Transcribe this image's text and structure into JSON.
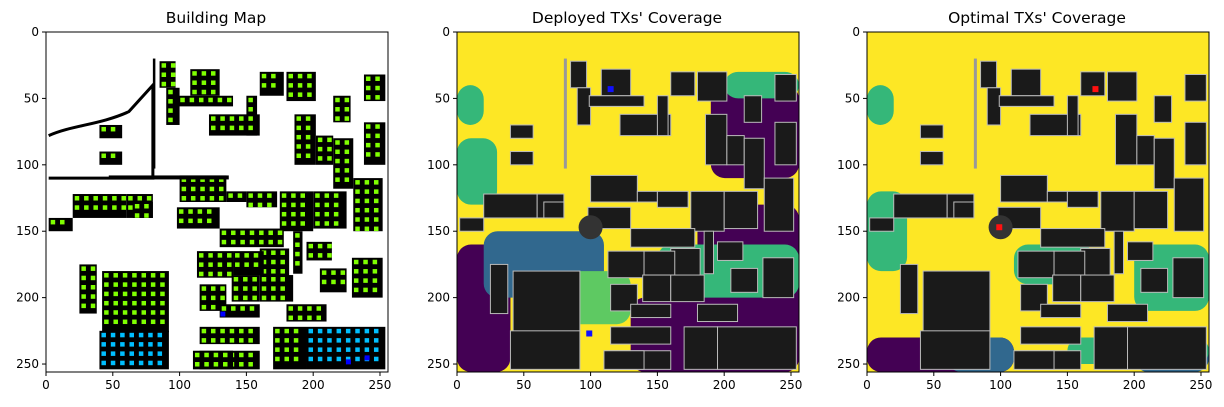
{
  "chart_data": [
    {
      "type": "heatmap",
      "title": "Building Map",
      "xlim": [
        0,
        256
      ],
      "ylim": [
        256,
        0
      ],
      "xticks": [
        0,
        50,
        100,
        150,
        200,
        250
      ],
      "yticks": [
        0,
        50,
        100,
        150,
        200,
        250
      ],
      "colors": {
        "background": "#ffffff",
        "building": "#000000",
        "marker": "#7fff00",
        "rx": "#00bfff",
        "tx": "#0000ff"
      }
    },
    {
      "type": "heatmap",
      "title": "Deployed TXs' Coverage",
      "xlim": [
        0,
        256
      ],
      "ylim": [
        256,
        0
      ],
      "xticks": [
        0,
        50,
        100,
        150,
        200,
        250
      ],
      "yticks": [
        0,
        50,
        100,
        150,
        200,
        250
      ],
      "tx_positions": [
        {
          "x": 115,
          "y": 43
        },
        {
          "x": 99,
          "y": 227
        }
      ],
      "tx_color": "#1010ff",
      "colormap": [
        "#440154",
        "#31688e",
        "#35b779",
        "#5ec962",
        "#fde725"
      ],
      "building_color": "#1a1a1a"
    },
    {
      "type": "heatmap",
      "title": "Optimal TXs' Coverage",
      "xlim": [
        0,
        256
      ],
      "ylim": [
        256,
        0
      ],
      "xticks": [
        0,
        50,
        100,
        150,
        200,
        250
      ],
      "yticks": [
        0,
        50,
        100,
        150,
        200,
        250
      ],
      "tx_positions": [
        {
          "x": 171,
          "y": 43
        },
        {
          "x": 99,
          "y": 147
        }
      ],
      "tx_color": "#ff1010",
      "colormap": [
        "#440154",
        "#31688e",
        "#35b779",
        "#5ec962",
        "#fde725"
      ],
      "building_color": "#1a1a1a"
    }
  ]
}
